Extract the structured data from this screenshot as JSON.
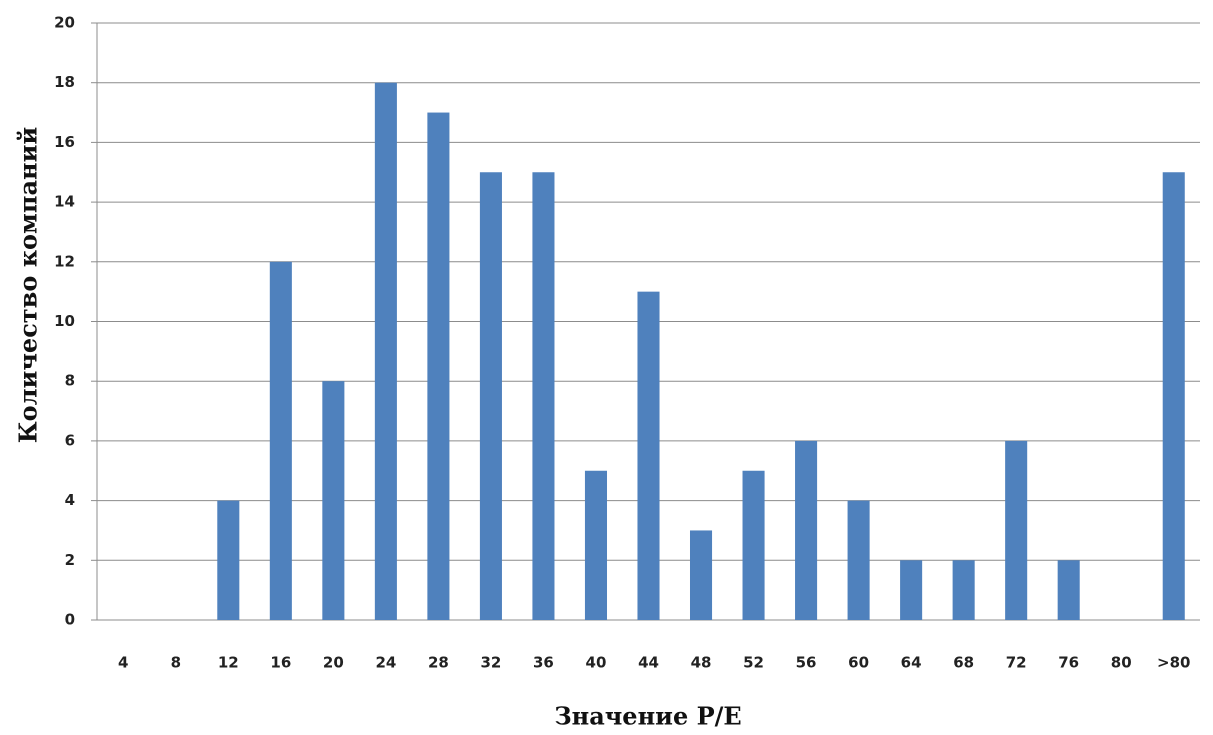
{
  "chart_data": {
    "type": "bar",
    "x_label": "Значение P/E",
    "y_label": "Количество компаний",
    "categories": [
      "4",
      "8",
      "12",
      "16",
      "20",
      "24",
      "28",
      "32",
      "36",
      "40",
      "44",
      "48",
      "52",
      "56",
      "60",
      "64",
      "68",
      "72",
      "76",
      "80",
      ">80"
    ],
    "values": [
      0,
      0,
      4,
      12,
      8,
      18,
      17,
      15,
      15,
      5,
      11,
      3,
      5,
      6,
      4,
      2,
      2,
      6,
      2,
      0,
      15
    ],
    "color": "#4f81bd",
    "ylim": [
      0,
      20
    ],
    "yticks": [
      0,
      2,
      4,
      6,
      8,
      10,
      12,
      14,
      16,
      18,
      20
    ],
    "grid": true
  }
}
